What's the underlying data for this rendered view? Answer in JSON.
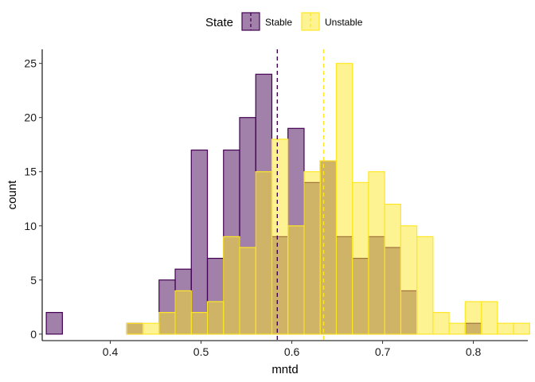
{
  "chart_data": {
    "type": "histogram",
    "xlabel": "mntd",
    "ylabel": "count",
    "xlim": [
      0.325,
      0.86
    ],
    "ylim": [
      -0.6,
      26.3
    ],
    "x_ticks": [
      0.4,
      0.5,
      0.6,
      0.7,
      0.8
    ],
    "x_tick_labels": [
      "0.4",
      "0.5",
      "0.6",
      "0.7",
      "0.8"
    ],
    "y_ticks": [
      0,
      5,
      10,
      15,
      20,
      25
    ],
    "y_tick_labels": [
      "0",
      "5",
      "10",
      "15",
      "20",
      "25"
    ],
    "grid": false,
    "bin_start": 0.3295,
    "bin_width": 0.01775,
    "legend": {
      "title": "State",
      "placement": "top",
      "entries": [
        "Stable",
        "Unstable"
      ]
    },
    "series": [
      {
        "name": "Stable",
        "fill": "#440154",
        "fill_opacity": 0.5,
        "stroke": "#440154",
        "mean_line": 0.584,
        "counts": [
          2,
          0,
          0,
          0,
          0,
          1,
          0,
          5,
          6,
          17,
          7,
          17,
          20,
          24,
          9,
          19,
          14,
          16,
          9,
          7,
          9,
          8,
          4,
          0,
          0,
          0,
          1,
          0,
          0
        ]
      },
      {
        "name": "Unstable",
        "fill": "#FDE725",
        "fill_opacity": 0.5,
        "stroke": "#FDE725",
        "mean_line": 0.635,
        "counts": [
          0,
          0,
          0,
          0,
          0,
          1,
          1,
          2,
          4,
          2,
          3,
          9,
          8,
          15,
          18,
          10,
          15,
          16,
          25,
          14,
          15,
          12,
          10,
          9,
          2,
          1,
          3,
          3,
          1,
          1
        ]
      }
    ]
  }
}
